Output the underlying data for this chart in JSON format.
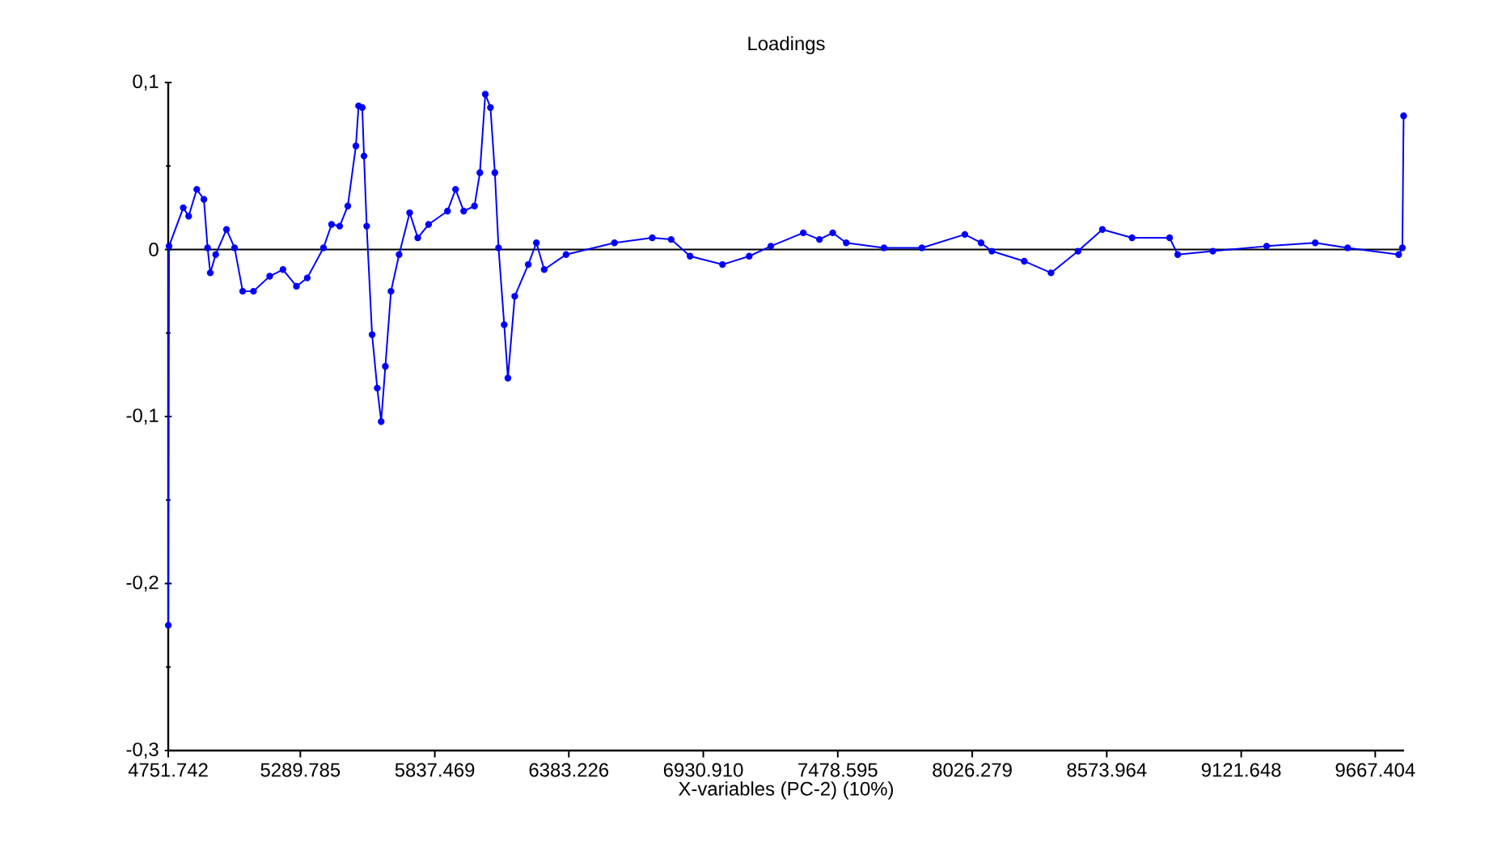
{
  "chart_data": {
    "type": "line",
    "title": "Loadings",
    "xlabel": "X-variables (PC-2) (10%)",
    "xlim": [
      4751.742,
      9785
    ],
    "ylim": [
      -0.3,
      0.1
    ],
    "xticks": [
      {
        "value": 4751.742,
        "label": "4751.742"
      },
      {
        "value": 5289.785,
        "label": "5289.785"
      },
      {
        "value": 5837.469,
        "label": "5837.469"
      },
      {
        "value": 6383.226,
        "label": "6383.226"
      },
      {
        "value": 6930.91,
        "label": "6930.910"
      },
      {
        "value": 7478.595,
        "label": "7478.595"
      },
      {
        "value": 8026.279,
        "label": "8026.279"
      },
      {
        "value": 8573.964,
        "label": "8573.964"
      },
      {
        "value": 9121.648,
        "label": "9121.648"
      },
      {
        "value": 9667.404,
        "label": "9667.404"
      }
    ],
    "yticks": [
      {
        "value": 0.1,
        "label": "0,1"
      },
      {
        "value": 0,
        "label": "0"
      },
      {
        "value": -0.1,
        "label": "-0,1"
      },
      {
        "value": -0.2,
        "label": "-0,2"
      },
      {
        "value": -0.3,
        "label": "-0,3"
      }
    ],
    "marker": "circle",
    "line_style": "solid",
    "ref_lines": [
      {
        "axis": "y",
        "value": 0,
        "color": "#000000"
      }
    ],
    "series": [
      {
        "color": "#0000ff",
        "x": [
          4752,
          4755,
          4813,
          4835,
          4868,
          4897,
          4912,
          4923,
          4945,
          4989,
          5022,
          5055,
          5099,
          5165,
          5219,
          5274,
          5318,
          5384,
          5417,
          5450,
          5483,
          5516,
          5527,
          5542,
          5549,
          5560,
          5582,
          5603,
          5619,
          5636,
          5659,
          5692,
          5735,
          5768,
          5812,
          5889,
          5922,
          5955,
          5999,
          6021,
          6043,
          6064,
          6082,
          6097,
          6120,
          6135,
          6163,
          6218,
          6251,
          6283,
          6372,
          6569,
          6723,
          6800,
          6877,
          7009,
          7118,
          7206,
          7338,
          7404,
          7458,
          7513,
          7667,
          7821,
          7996,
          8062,
          8106,
          8238,
          8347,
          8457,
          8556,
          8677,
          8830,
          8863,
          9006,
          9225,
          9423,
          9555,
          9763,
          9778,
          9783
        ],
        "values": [
          -0.225,
          0.002,
          0.025,
          0.02,
          0.036,
          0.03,
          0.001,
          -0.014,
          -0.003,
          0.012,
          0.001,
          -0.025,
          -0.025,
          -0.016,
          -0.012,
          -0.022,
          -0.017,
          0.001,
          0.015,
          0.014,
          0.026,
          0.062,
          0.086,
          0.085,
          0.056,
          0.014,
          -0.051,
          -0.083,
          -0.103,
          -0.07,
          -0.025,
          -0.003,
          0.022,
          0.007,
          0.015,
          0.023,
          0.036,
          0.023,
          0.026,
          0.046,
          0.093,
          0.085,
          0.046,
          0.001,
          -0.045,
          -0.077,
          -0.028,
          -0.009,
          0.004,
          -0.012,
          -0.003,
          0.004,
          0.007,
          0.006,
          -0.004,
          -0.009,
          -0.004,
          0.002,
          0.01,
          0.006,
          0.01,
          0.004,
          0.001,
          0.001,
          0.009,
          0.004,
          -0.001,
          -0.007,
          -0.014,
          -0.001,
          0.012,
          0.007,
          0.007,
          -0.003,
          -0.001,
          0.002,
          0.004,
          0.001,
          -0.003,
          0.001,
          0.08
        ]
      }
    ]
  }
}
